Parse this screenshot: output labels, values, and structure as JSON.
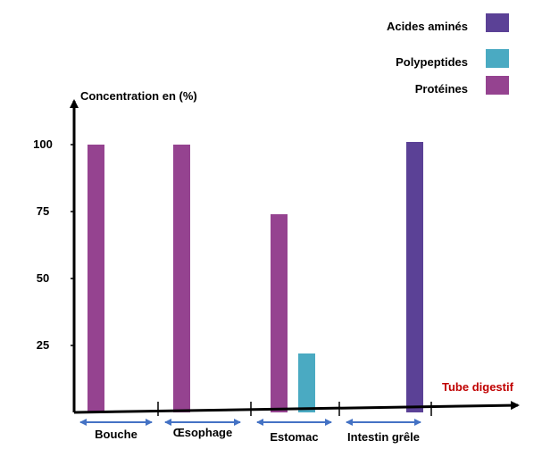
{
  "chart_data": {
    "type": "bar",
    "title": "",
    "ylabel": "Concentration en (%)",
    "xlabel": "Tube digestif",
    "ylim": [
      0,
      110
    ],
    "yticks": [
      25,
      50,
      75,
      100
    ],
    "grid": false,
    "legend_position": "top-right",
    "categories": [
      "Bouche",
      "Œsophage",
      "Estomac",
      "Intestin grêle"
    ],
    "series": [
      {
        "name": "Acides aminés",
        "color": "#5B4196",
        "values": [
          0,
          0,
          0,
          101
        ]
      },
      {
        "name": "Polypeptides",
        "color": "#4AAAC2",
        "values": [
          0,
          0,
          22,
          0
        ]
      },
      {
        "name": "Protéines",
        "color": "#954390",
        "values": [
          100,
          100,
          74,
          0
        ]
      }
    ],
    "colors": {
      "axis": "#000000",
      "xlabel": "#C00000",
      "segment_arrow": "#4472C4"
    }
  }
}
